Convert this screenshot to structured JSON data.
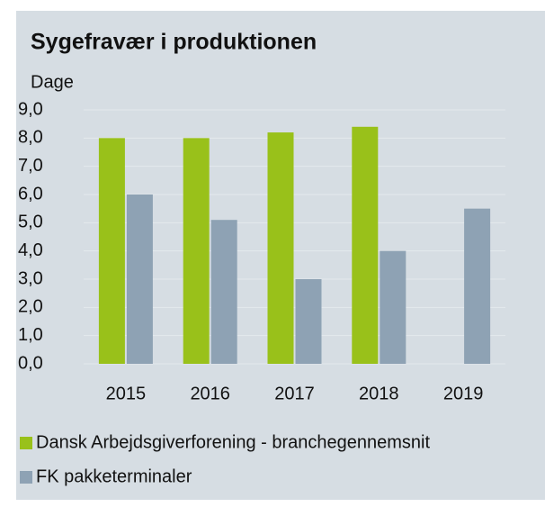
{
  "chart_data": {
    "type": "bar",
    "title": "Sygefravær i produktionen",
    "y_label": "Dage",
    "categories": [
      "2015",
      "2016",
      "2017",
      "2018",
      "2019"
    ],
    "series": [
      {
        "name": "Dansk Arbejdsgiverforening - branchegennemsnit",
        "color": "#99c11a",
        "values": [
          8.0,
          8.0,
          8.2,
          8.4,
          null
        ]
      },
      {
        "name": "FK pakketerminaler",
        "color": "#8ea2b4",
        "values": [
          6.0,
          5.1,
          3.0,
          4.0,
          5.5
        ]
      }
    ],
    "ylim": [
      0,
      9
    ],
    "yticks": [
      {
        "value": 0,
        "label": "0,0"
      },
      {
        "value": 1,
        "label": "1,0"
      },
      {
        "value": 2,
        "label": "2,0"
      },
      {
        "value": 3,
        "label": "3,0"
      },
      {
        "value": 4,
        "label": "4,0"
      },
      {
        "value": 5,
        "label": "5,0"
      },
      {
        "value": 6,
        "label": "6,0"
      },
      {
        "value": 7,
        "label": "7,0"
      },
      {
        "value": 8,
        "label": "8,0"
      },
      {
        "value": 9,
        "label": "9,0"
      }
    ],
    "grid": true
  }
}
